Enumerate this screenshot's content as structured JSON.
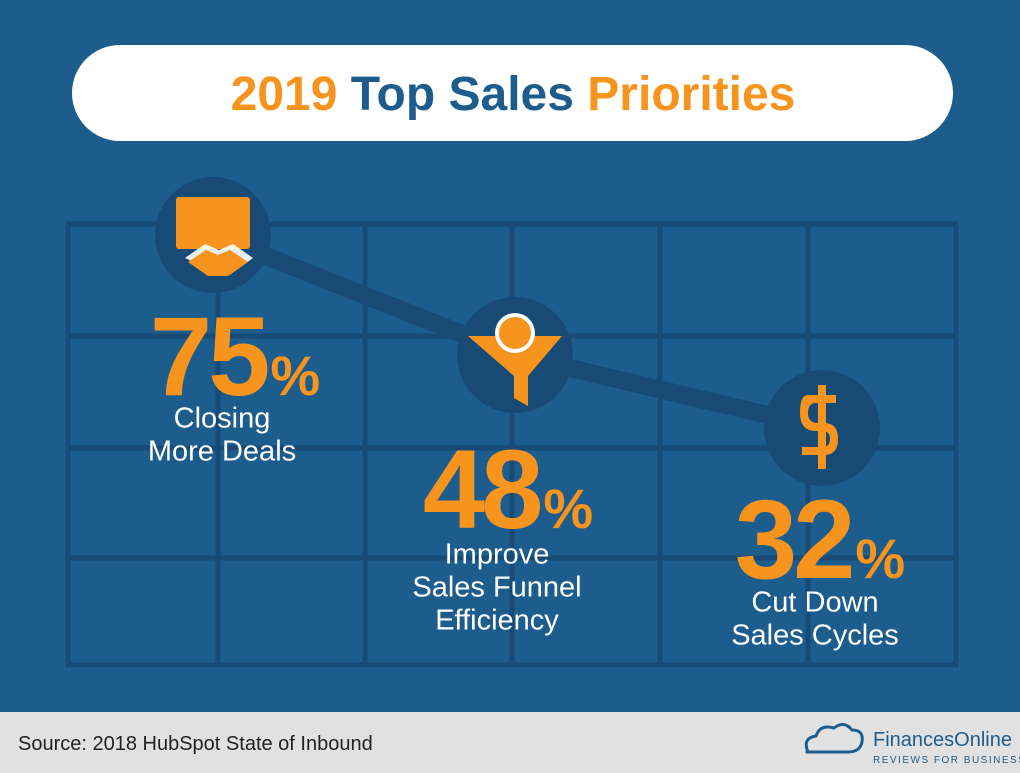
{
  "header": {
    "title": [
      {
        "text": "2019",
        "color": "#f7941d"
      },
      {
        "text": "Top Sales",
        "color": "#1d5d8e"
      },
      {
        "text": "Priorities",
        "color": "#f7941d"
      }
    ]
  },
  "items": [
    {
      "value": 75,
      "unit": "%",
      "label": [
        "Closing",
        "More Deals"
      ]
    },
    {
      "value": 48,
      "unit": "%",
      "label": [
        "Improve",
        "Sales Funnel",
        "Efficiency"
      ]
    },
    {
      "value": 32,
      "unit": "%",
      "label": [
        "Cut Down",
        "Sales Cycles"
      ]
    }
  ],
  "footer": {
    "source": "Source:  2018 HubSpot State of Inbound",
    "brand": "FinancesOnline",
    "tagline": "REVIEWS FOR BUSINESS"
  }
}
